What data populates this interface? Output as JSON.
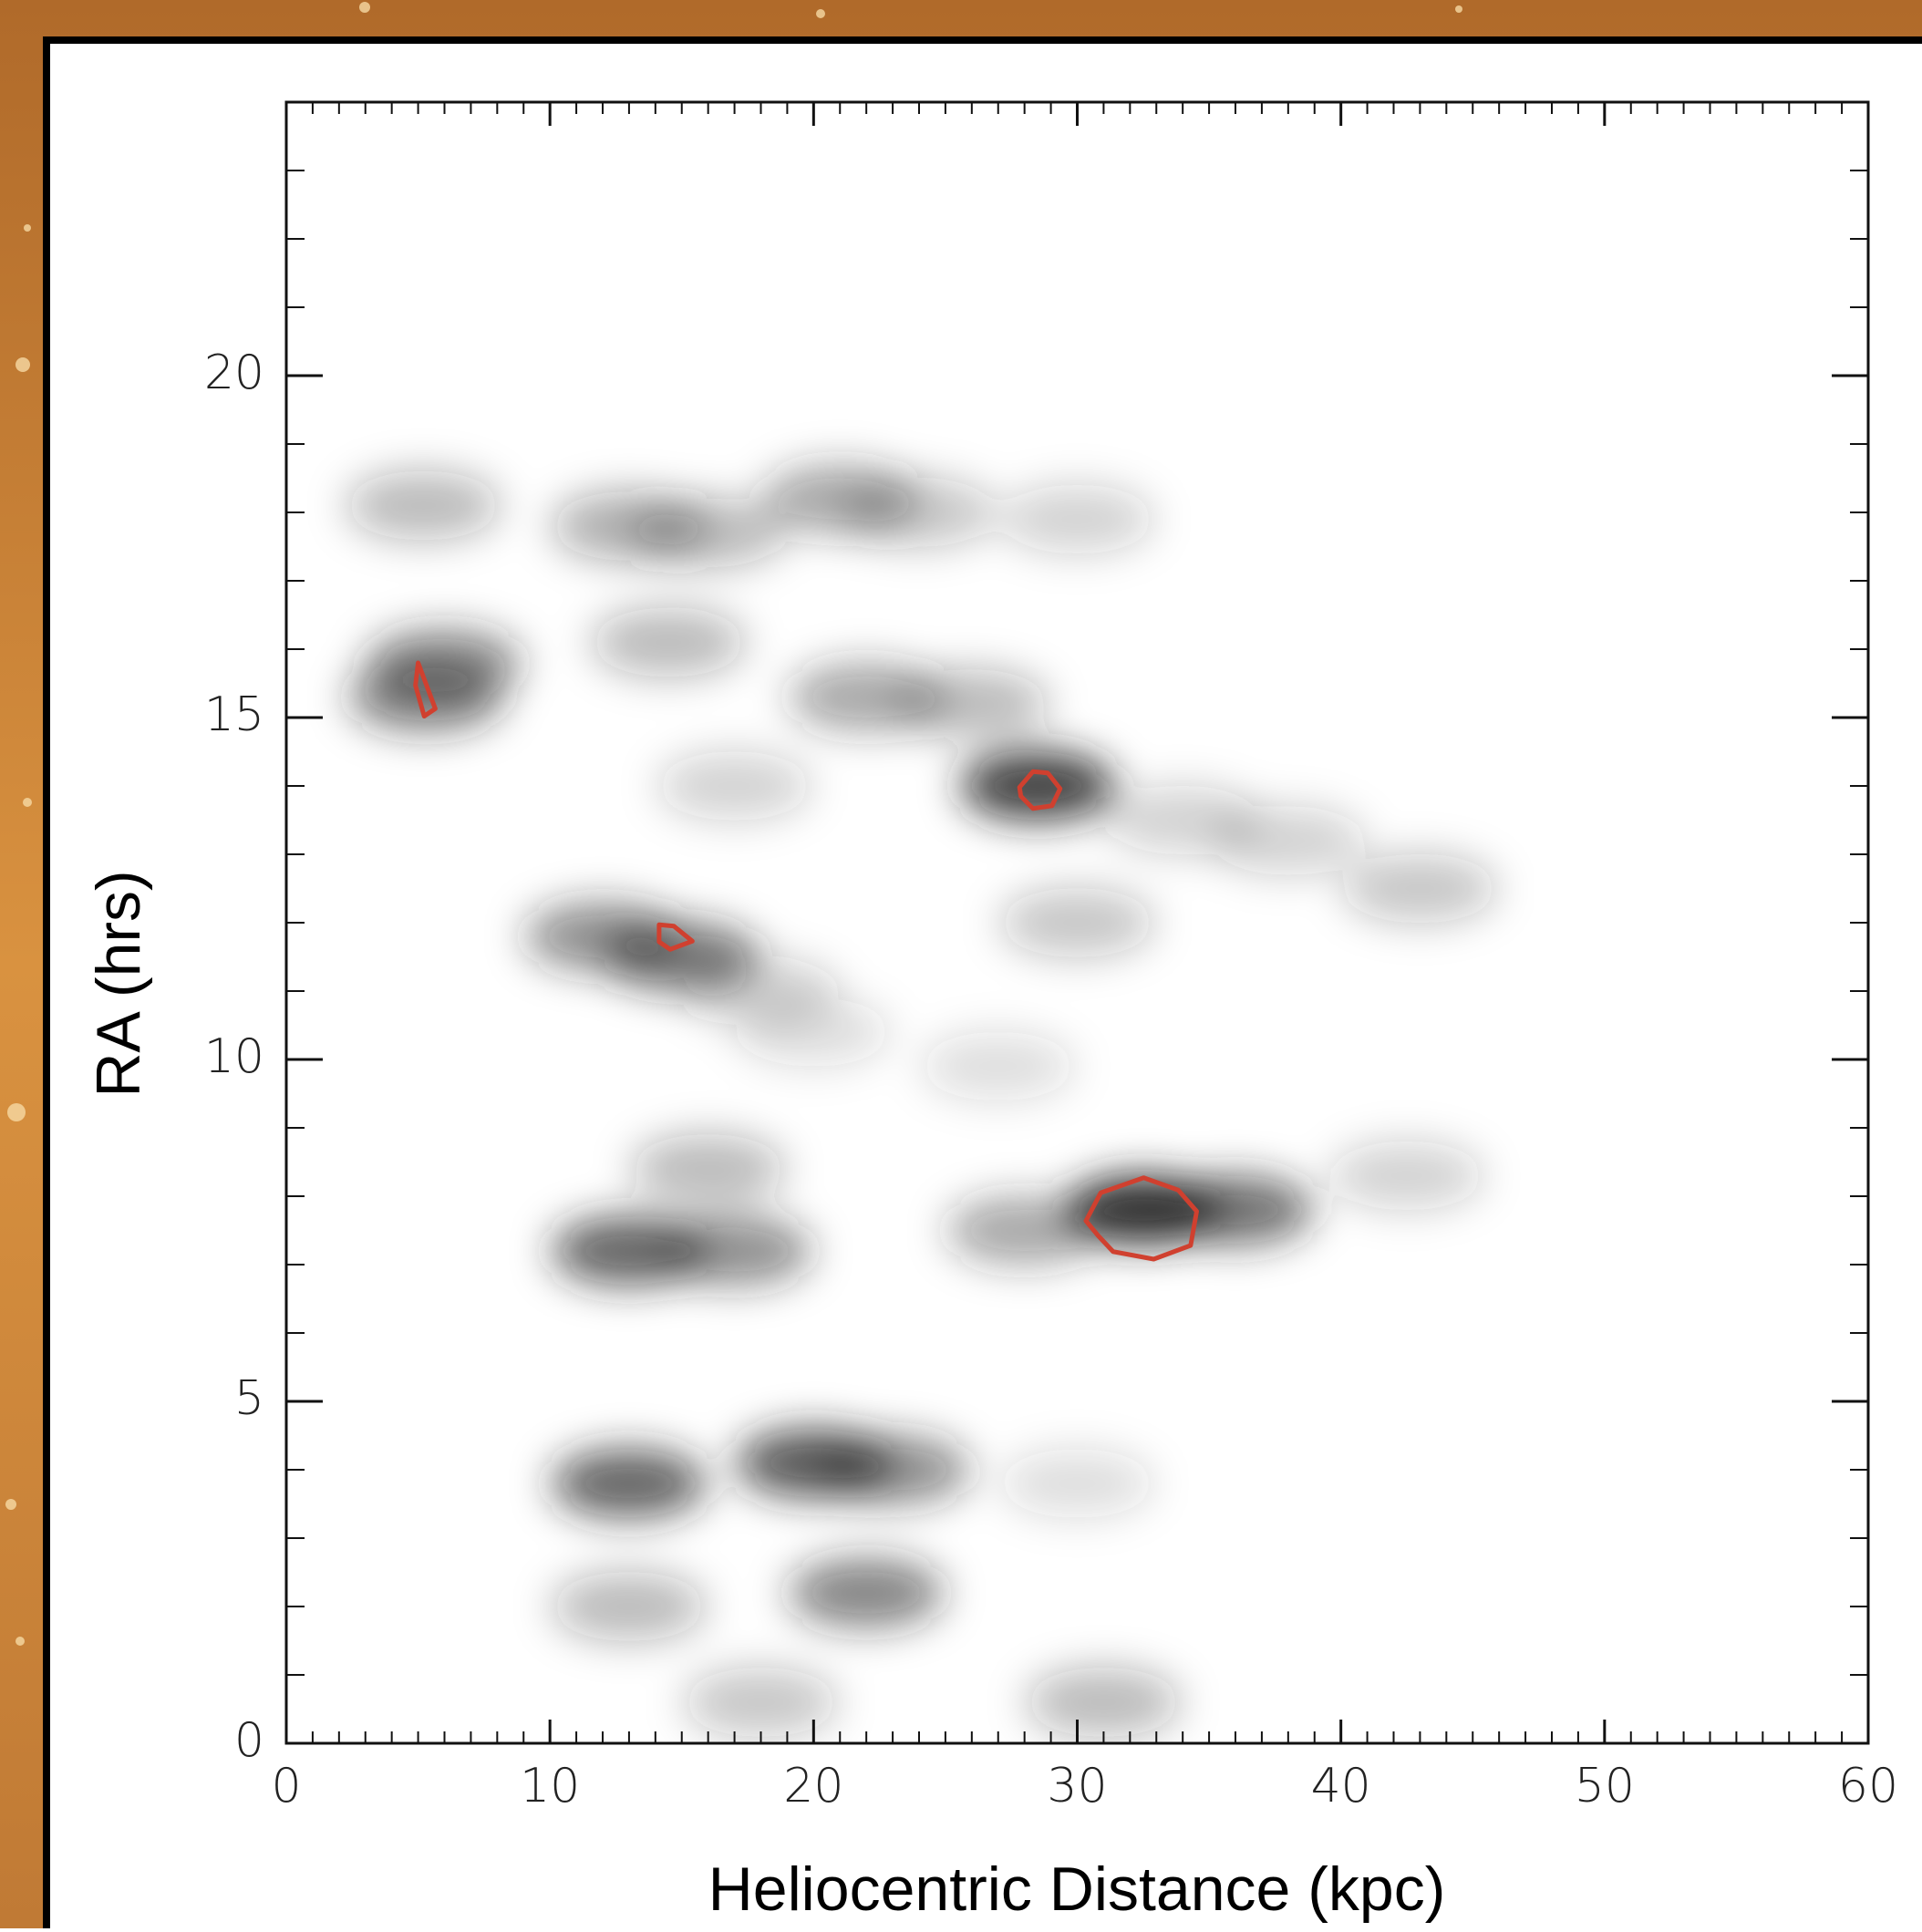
{
  "chart_data": {
    "type": "density",
    "x_label": "Heliocentric Distance (kpc)",
    "y_label": "RA (hrs)",
    "xlim": [
      0,
      60
    ],
    "xticks": [
      0,
      10,
      20,
      30,
      40,
      50,
      60
    ],
    "ylim": [
      0,
      24
    ],
    "yticks": [
      0,
      5,
      10,
      15,
      20
    ],
    "color": "#222222",
    "contour_color": "#d0402f",
    "density_peaks": {
      "x": [
        5.2,
        6,
        5.3,
        13,
        16,
        21,
        24,
        30,
        14.5,
        22,
        26,
        17,
        28.5,
        34,
        38,
        43,
        30,
        12,
        15,
        18,
        20,
        27,
        16,
        13,
        17,
        28,
        32.5,
        36,
        42.5,
        13,
        20,
        23,
        30,
        13,
        22,
        18,
        31
      ],
      "y": [
        18.1,
        15.8,
        15.3,
        17.8,
        17.7,
        18.2,
        18,
        17.9,
        16.1,
        15.3,
        15.2,
        14,
        14,
        13.5,
        13.2,
        12.5,
        12,
        11.8,
        11.5,
        11,
        10.4,
        9.9,
        8.4,
        7.2,
        7.2,
        7.5,
        7.8,
        7.8,
        8.3,
        3.8,
        4.1,
        4,
        3.8,
        2,
        2.2,
        0.6,
        0.6
      ],
      "values": [
        0.3,
        0.5,
        0.55,
        0.35,
        0.3,
        0.4,
        0.25,
        0.2,
        0.3,
        0.4,
        0.3,
        0.2,
        0.85,
        0.2,
        0.2,
        0.25,
        0.25,
        0.5,
        0.6,
        0.2,
        0.15,
        0.15,
        0.3,
        0.7,
        0.5,
        0.4,
        0.95,
        0.65,
        0.2,
        0.7,
        0.75,
        0.5,
        0.15,
        0.3,
        0.55,
        0.25,
        0.3
      ]
    },
    "contours": [
      {
        "x": [
          5.0,
          5.65,
          5.23,
          4.9
        ],
        "y": [
          15.8,
          15.13,
          15.02,
          15.47
        ]
      },
      {
        "x": [
          27.81,
          28.32,
          28.88,
          29.35,
          29.04,
          28.32,
          27.86
        ],
        "y": [
          13.98,
          14.21,
          14.19,
          13.96,
          13.71,
          13.67,
          13.85
        ]
      },
      {
        "x": [
          14.14,
          14.7,
          15.4,
          14.56,
          14.14
        ],
        "y": [
          11.97,
          11.95,
          11.73,
          11.61,
          11.72
        ]
      },
      {
        "x": [
          30.33,
          30.89,
          32.52,
          33.83,
          34.53,
          34.3,
          32.9,
          31.36,
          30.8
        ],
        "y": [
          7.64,
          8.05,
          8.27,
          8.09,
          7.78,
          7.28,
          7.08,
          7.19,
          7.42
        ]
      }
    ]
  }
}
